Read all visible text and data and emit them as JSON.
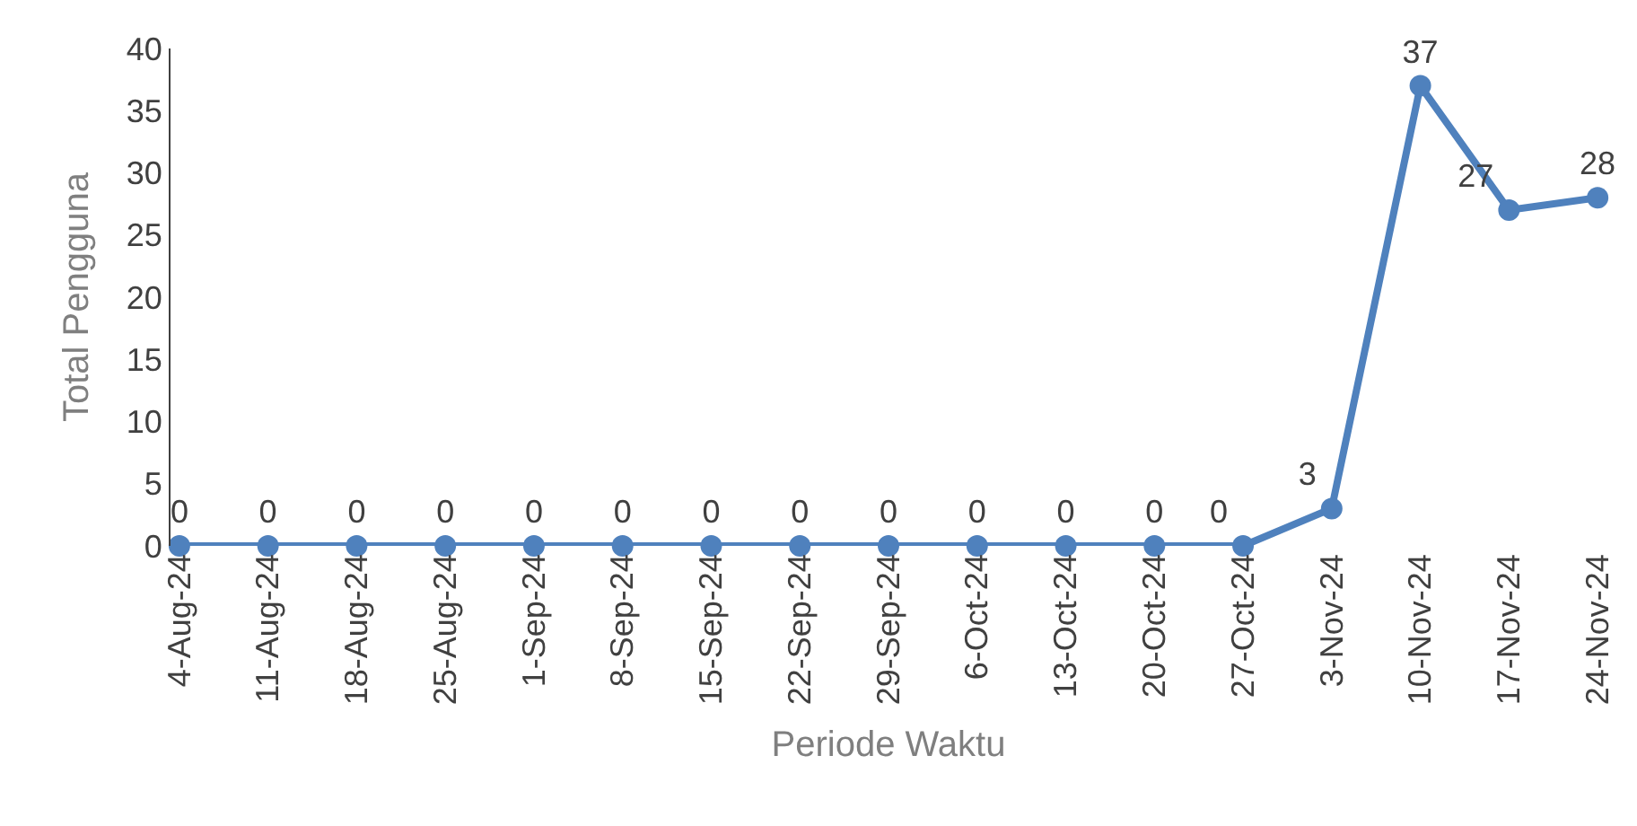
{
  "chart_data": {
    "type": "line",
    "xlabel": "Periode Waktu",
    "ylabel": "Total Pengguna",
    "categories": [
      "4-Aug-24",
      "11-Aug-24",
      "18-Aug-24",
      "25-Aug-24",
      "1-Sep-24",
      "8-Sep-24",
      "15-Sep-24",
      "22-Sep-24",
      "29-Sep-24",
      "6-Oct-24",
      "13-Oct-24",
      "20-Oct-24",
      "27-Oct-24",
      "3-Nov-24",
      "10-Nov-24",
      "17-Nov-24",
      "24-Nov-24"
    ],
    "series": [
      {
        "color": "#4f81bd",
        "values": [
          0,
          0,
          0,
          0,
          0,
          0,
          0,
          0,
          0,
          0,
          0,
          0,
          0,
          3,
          37,
          27,
          28
        ]
      }
    ],
    "ylim": [
      0,
      40
    ],
    "yticks": [
      0,
      5,
      10,
      15,
      20,
      25,
      30,
      35,
      40
    ],
    "marker": "circle",
    "line_style": "solid",
    "data_labels": true
  }
}
